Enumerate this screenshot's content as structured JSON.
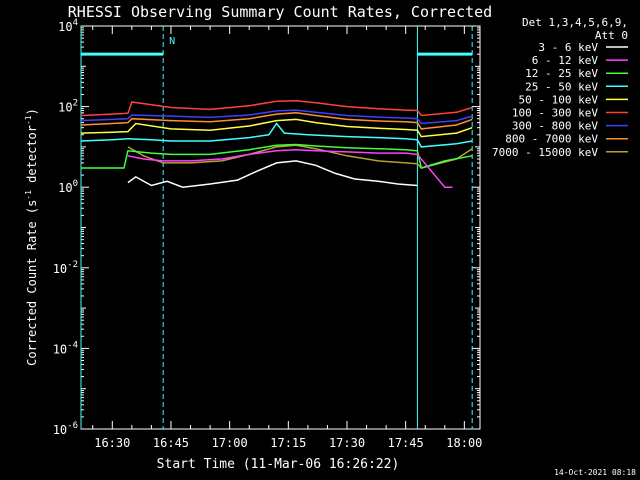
{
  "chart_data": {
    "type": "line",
    "title": "RHESSI Observing Summary Count Rates, Corrected",
    "xlabel": "Start Time (11-Mar-06 16:26:22)",
    "ylabel_parts": [
      "Corrected Count Rate (s",
      "-1",
      " detector",
      "-1",
      ")"
    ],
    "yscale": "log",
    "ylim": [
      1e-06,
      10000.0
    ],
    "xlim": [
      "16:22",
      "18:04"
    ],
    "x_ticks": [
      "16:30",
      "16:45",
      "17:00",
      "17:15",
      "17:30",
      "17:45",
      "18:00"
    ],
    "y_ticks": [
      {
        "base": "10",
        "exp": "4"
      },
      {
        "base": "10",
        "exp": "2"
      },
      {
        "base": "10",
        "exp": "0"
      },
      {
        "base": "10",
        "exp": "-2"
      },
      {
        "base": "10",
        "exp": "-4"
      },
      {
        "base": "10",
        "exp": "-6"
      }
    ],
    "legend_header": [
      "Det 1,3,4,5,6,9,",
      "Att 0"
    ],
    "legend_position": "right",
    "timestamp": "14-Oct-2021 08:18",
    "annotations": [
      {
        "label": "N",
        "time": "16:43"
      }
    ],
    "flags": [
      {
        "name": "night",
        "start": "16:22",
        "end": "16:43",
        "y": 2000
      },
      {
        "name": "night",
        "start": "17:48",
        "end": "18:02",
        "y": 2000
      }
    ],
    "vertical_lines": [
      {
        "time": "16:22",
        "style": "solid"
      },
      {
        "time": "16:43",
        "style": "dashed"
      },
      {
        "time": "17:48",
        "style": "solid"
      },
      {
        "time": "18:02",
        "style": "dashed"
      }
    ],
    "series": [
      {
        "name": "3 - 6 keV",
        "color": "#ffffff",
        "points": [
          [
            "16:34",
            1.3
          ],
          [
            "16:36",
            1.8
          ],
          [
            "16:40",
            1.1
          ],
          [
            "16:44",
            1.4
          ],
          [
            "16:48",
            1.0
          ],
          [
            "16:55",
            1.2
          ],
          [
            "17:02",
            1.5
          ],
          [
            "17:07",
            2.5
          ],
          [
            "17:12",
            4.0
          ],
          [
            "17:17",
            4.5
          ],
          [
            "17:22",
            3.5
          ],
          [
            "17:27",
            2.2
          ],
          [
            "17:32",
            1.6
          ],
          [
            "17:38",
            1.4
          ],
          [
            "17:43",
            1.2
          ],
          [
            "17:48",
            1.1
          ]
        ]
      },
      {
        "name": "6 - 12 keV",
        "color": "#ff40ff",
        "points": [
          [
            "16:34",
            6.0
          ],
          [
            "16:38",
            5.0
          ],
          [
            "16:43",
            4.5
          ],
          [
            "16:50",
            4.5
          ],
          [
            "16:58",
            5.0
          ],
          [
            "17:05",
            6.5
          ],
          [
            "17:12",
            8.0
          ],
          [
            "17:17",
            8.5
          ],
          [
            "17:22",
            8.0
          ],
          [
            "17:30",
            7.5
          ],
          [
            "17:38",
            7.0
          ],
          [
            "17:45",
            7.0
          ],
          [
            "17:48",
            6.5
          ],
          [
            "17:55",
            1.0
          ],
          [
            "17:57",
            1.0
          ]
        ]
      },
      {
        "name": "12 - 25 keV",
        "color": "#40ff40",
        "points": [
          [
            "16:22",
            3.0
          ],
          [
            "16:33",
            3.0
          ],
          [
            "16:34",
            8.0
          ],
          [
            "16:40",
            7.0
          ],
          [
            "16:45",
            6.5
          ],
          [
            "16:55",
            6.5
          ],
          [
            "17:05",
            8.5
          ],
          [
            "17:12",
            11.0
          ],
          [
            "17:17",
            11.5
          ],
          [
            "17:22",
            10.5
          ],
          [
            "17:30",
            9.5
          ],
          [
            "17:38",
            9.0
          ],
          [
            "17:45",
            8.5
          ],
          [
            "17:48",
            8.0
          ],
          [
            "17:49",
            3.0
          ],
          [
            "17:55",
            4.5
          ],
          [
            "18:02",
            6.0
          ]
        ]
      },
      {
        "name": "25 - 50 keV",
        "color": "#40ffff",
        "points": [
          [
            "16:22",
            14.0
          ],
          [
            "16:30",
            15.0
          ],
          [
            "16:34",
            16.0
          ],
          [
            "16:40",
            15.0
          ],
          [
            "16:45",
            14.0
          ],
          [
            "16:55",
            14.0
          ],
          [
            "17:05",
            17.0
          ],
          [
            "17:10",
            20.0
          ],
          [
            "17:12",
            38.0
          ],
          [
            "17:14",
            22.0
          ],
          [
            "17:20",
            20.0
          ],
          [
            "17:30",
            18.0
          ],
          [
            "17:38",
            17.0
          ],
          [
            "17:45",
            16.0
          ],
          [
            "17:48",
            15.0
          ],
          [
            "17:49",
            10.0
          ],
          [
            "17:58",
            12.0
          ],
          [
            "18:02",
            14.0
          ]
        ]
      },
      {
        "name": "50 - 100 keV",
        "color": "#ffff40",
        "points": [
          [
            "16:22",
            22.0
          ],
          [
            "16:30",
            23.0
          ],
          [
            "16:34",
            24.0
          ],
          [
            "16:36",
            38.0
          ],
          [
            "16:45",
            28.0
          ],
          [
            "16:55",
            26.0
          ],
          [
            "17:05",
            33.0
          ],
          [
            "17:12",
            45.0
          ],
          [
            "17:17",
            48.0
          ],
          [
            "17:22",
            40.0
          ],
          [
            "17:30",
            32.0
          ],
          [
            "17:38",
            29.0
          ],
          [
            "17:45",
            27.0
          ],
          [
            "17:48",
            26.0
          ],
          [
            "17:49",
            18.0
          ],
          [
            "17:58",
            22.0
          ],
          [
            "18:02",
            30.0
          ]
        ]
      },
      {
        "name": "100 - 300 keV",
        "color": "#ff4040",
        "points": [
          [
            "16:22",
            60.0
          ],
          [
            "16:30",
            65.0
          ],
          [
            "16:34",
            68.0
          ],
          [
            "16:35",
            130.0
          ],
          [
            "16:45",
            95.0
          ],
          [
            "16:55",
            85.0
          ],
          [
            "17:05",
            105.0
          ],
          [
            "17:12",
            135.0
          ],
          [
            "17:17",
            140.0
          ],
          [
            "17:22",
            125.0
          ],
          [
            "17:30",
            100.0
          ],
          [
            "17:38",
            88.0
          ],
          [
            "17:45",
            82.0
          ],
          [
            "17:48",
            80.0
          ],
          [
            "17:49",
            60.0
          ],
          [
            "17:58",
            72.0
          ],
          [
            "18:02",
            95.0
          ]
        ]
      },
      {
        "name": "300 - 800 keV",
        "color": "#4040ff",
        "points": [
          [
            "16:22",
            45.0
          ],
          [
            "16:30",
            48.0
          ],
          [
            "16:34",
            50.0
          ],
          [
            "16:35",
            62.0
          ],
          [
            "16:45",
            58.0
          ],
          [
            "16:55",
            54.0
          ],
          [
            "17:05",
            62.0
          ],
          [
            "17:12",
            78.0
          ],
          [
            "17:17",
            82.0
          ],
          [
            "17:22",
            72.0
          ],
          [
            "17:30",
            60.0
          ],
          [
            "17:38",
            55.0
          ],
          [
            "17:45",
            52.0
          ],
          [
            "17:48",
            50.0
          ],
          [
            "17:49",
            38.0
          ],
          [
            "17:58",
            45.0
          ],
          [
            "18:02",
            58.0
          ]
        ]
      },
      {
        "name": "800 - 7000 keV",
        "color": "#ff9030",
        "points": [
          [
            "16:22",
            35.0
          ],
          [
            "16:30",
            38.0
          ],
          [
            "16:34",
            40.0
          ],
          [
            "16:35",
            50.0
          ],
          [
            "16:45",
            45.0
          ],
          [
            "16:55",
            42.0
          ],
          [
            "17:05",
            50.0
          ],
          [
            "17:12",
            65.0
          ],
          [
            "17:17",
            70.0
          ],
          [
            "17:22",
            60.0
          ],
          [
            "17:30",
            48.0
          ],
          [
            "17:38",
            44.0
          ],
          [
            "17:45",
            42.0
          ],
          [
            "17:48",
            40.0
          ],
          [
            "17:49",
            28.0
          ],
          [
            "17:58",
            35.0
          ],
          [
            "18:02",
            48.0
          ]
        ]
      },
      {
        "name": "7000 - 15000 keV",
        "color": "#b8a030",
        "points": [
          [
            "16:34",
            10.0
          ],
          [
            "16:38",
            6.0
          ],
          [
            "16:43",
            4.0
          ],
          [
            "16:50",
            4.0
          ],
          [
            "16:58",
            4.5
          ],
          [
            "17:05",
            6.5
          ],
          [
            "17:12",
            10.0
          ],
          [
            "17:17",
            11.0
          ],
          [
            "17:22",
            9.0
          ],
          [
            "17:30",
            6.0
          ],
          [
            "17:38",
            4.5
          ],
          [
            "17:45",
            4.0
          ],
          [
            "17:48",
            3.8
          ],
          [
            "17:49",
            3.0
          ],
          [
            "17:58",
            5.0
          ],
          [
            "18:02",
            9.0
          ]
        ]
      }
    ]
  }
}
